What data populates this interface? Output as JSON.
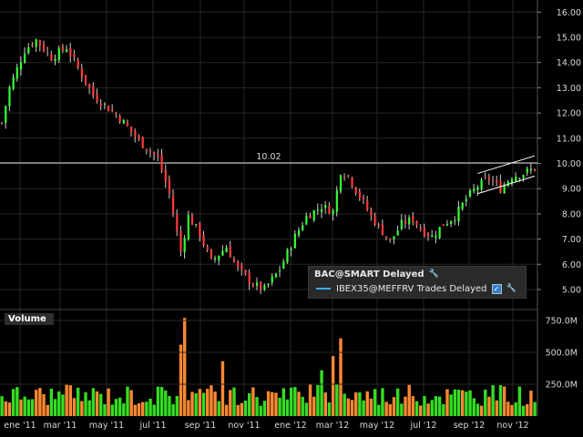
{
  "chart_data": [
    {
      "type": "candlestick",
      "series": [
        {
          "name": "BAC@SMART Delayed"
        },
        {
          "name": "IBEX35@MEFFRV Trades Delayed"
        }
      ],
      "x_ticks": [
        "ene '11",
        "mar '11",
        "may '11",
        "jul '11",
        "sep '11",
        "nov '11",
        "ene '12",
        "mar '12",
        "may '12",
        "jul '12",
        "sep '12",
        "nov '12"
      ],
      "y_ticks": [
        "16.00",
        "15.00",
        "14.00",
        "13.00",
        "12.00",
        "11.00",
        "10.00",
        "9.00",
        "8.00",
        "7.00",
        "6.00",
        "5.00"
      ],
      "ylim": [
        4.6,
        16.2
      ],
      "anchors": [
        {
          "t": 0,
          "v": 11.6
        },
        {
          "t": 2,
          "v": 13.0
        },
        {
          "t": 6,
          "v": 14.5
        },
        {
          "t": 9,
          "v": 14.9
        },
        {
          "t": 13,
          "v": 14.2
        },
        {
          "t": 17,
          "v": 14.6
        },
        {
          "t": 24,
          "v": 12.7
        },
        {
          "t": 31,
          "v": 11.8
        },
        {
          "t": 36,
          "v": 10.9
        },
        {
          "t": 41,
          "v": 10.2
        },
        {
          "t": 44,
          "v": 8.8
        },
        {
          "t": 47,
          "v": 6.5
        },
        {
          "t": 49,
          "v": 7.9
        },
        {
          "t": 52,
          "v": 7.2
        },
        {
          "t": 55,
          "v": 6.1
        },
        {
          "t": 59,
          "v": 6.7
        },
        {
          "t": 62,
          "v": 5.8
        },
        {
          "t": 66,
          "v": 5.2
        },
        {
          "t": 69,
          "v": 5.0
        },
        {
          "t": 73,
          "v": 5.8
        },
        {
          "t": 77,
          "v": 7.1
        },
        {
          "t": 80,
          "v": 7.9
        },
        {
          "t": 84,
          "v": 8.3
        },
        {
          "t": 87,
          "v": 8.1
        },
        {
          "t": 89,
          "v": 9.7
        },
        {
          "t": 91,
          "v": 9.5
        },
        {
          "t": 94,
          "v": 8.7
        },
        {
          "t": 97,
          "v": 7.9
        },
        {
          "t": 100,
          "v": 7.3
        },
        {
          "t": 102,
          "v": 6.9
        },
        {
          "t": 105,
          "v": 7.6
        },
        {
          "t": 108,
          "v": 7.8
        },
        {
          "t": 110,
          "v": 7.4
        },
        {
          "t": 113,
          "v": 7.1
        },
        {
          "t": 116,
          "v": 7.6
        },
        {
          "t": 119,
          "v": 7.9
        },
        {
          "t": 122,
          "v": 8.6
        },
        {
          "t": 125,
          "v": 9.1
        },
        {
          "t": 128,
          "v": 9.4
        },
        {
          "t": 131,
          "v": 9.0
        },
        {
          "t": 134,
          "v": 9.5
        },
        {
          "t": 137,
          "v": 9.6
        },
        {
          "t": 140,
          "v": 9.8
        }
      ],
      "horizontal_line": {
        "value": 10.02,
        "label": "10.02"
      },
      "channel": {
        "start_t": 125,
        "end_t": 140,
        "upper": [
          9.6,
          10.3
        ],
        "lower": [
          8.8,
          9.5
        ]
      },
      "volume": {
        "label": "Volume",
        "y_ticks": [
          "750.0M",
          "500.0M",
          "250.0M"
        ],
        "ylim": [
          0,
          800
        ],
        "spikes": [
          {
            "t": 48,
            "v": 770
          },
          {
            "t": 47,
            "v": 560
          },
          {
            "t": 89,
            "v": 610
          },
          {
            "t": 87,
            "v": 470
          },
          {
            "t": 58,
            "v": 430
          },
          {
            "t": 84,
            "v": 360
          }
        ]
      }
    }
  ],
  "colors": {
    "up": "#33ff33",
    "down": "#ff3b3b",
    "wick": "#cccccc",
    "background": "#000000",
    "grid": "#262626",
    "axis_text": "#d8d8d8",
    "volume_up": "#33dd22",
    "volume_down": "#ff8833",
    "channel": "#ffffff",
    "legend_line": "#3ab0ff"
  },
  "legend": {
    "main": "BAC@SMART Delayed",
    "secondary": "IBEX35@MEFFRV Trades Delayed",
    "wrench_icon": "wrench-icon",
    "check_icon": "checkbox-icon"
  }
}
